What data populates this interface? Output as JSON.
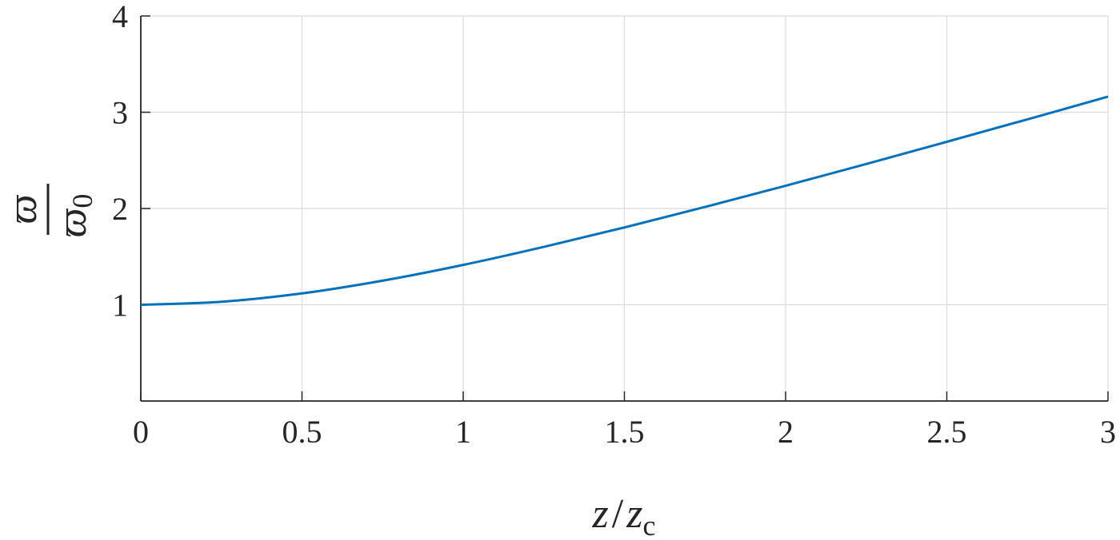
{
  "chart_data": {
    "type": "line",
    "xlabel": {
      "num": "z",
      "slash": "/",
      "den": "z",
      "den_sub": "c"
    },
    "ylabel": {
      "numerator": "ϖ",
      "denominator": "ϖ",
      "denominator_sub": "0"
    },
    "xlim": [
      0,
      3
    ],
    "ylim": [
      0,
      4
    ],
    "grid": true,
    "xticks": [
      "0",
      "0.5",
      "1",
      "1.5",
      "2",
      "2.5",
      "3"
    ],
    "yticks": [
      "1",
      "2",
      "3",
      "4"
    ],
    "series": [
      {
        "color": "#0072BD",
        "x": [
          0,
          0.25,
          0.5,
          0.75,
          1,
          1.25,
          1.5,
          1.75,
          2,
          2.25,
          2.5,
          2.75,
          3
        ],
        "y": [
          1,
          1.031,
          1.118,
          1.25,
          1.414,
          1.601,
          1.803,
          2.016,
          2.236,
          2.462,
          2.693,
          2.926,
          3.162
        ]
      }
    ]
  }
}
